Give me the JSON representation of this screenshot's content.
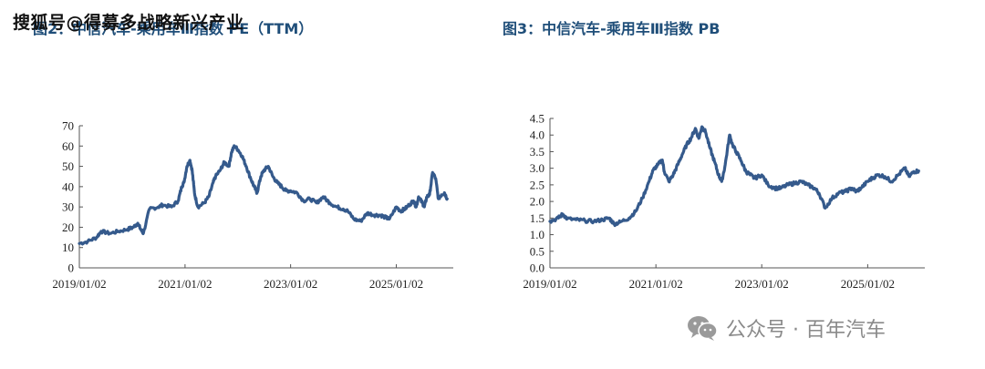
{
  "header": {
    "left_title": "图2：中信汽车-乘用车Ⅲ指数 PE（TTM）",
    "right_title": "图3：中信汽车-乘用车Ⅲ指数 PB",
    "overlay_watermark": "搜狐号@得募多战略新兴产业"
  },
  "footer": {
    "watermark_icon": "wechat-icon",
    "watermark_text": "公众号 · 百年汽车"
  },
  "chart_data": [
    {
      "type": "line",
      "title": "图2：中信汽车-乘用车Ⅲ指数 PE（TTM）",
      "xlabel": "",
      "ylabel": "",
      "ylim": [
        0,
        70
      ],
      "yticks": [
        0,
        10,
        20,
        30,
        40,
        50,
        60,
        70
      ],
      "xlim": [
        "2019/01/02",
        "2026/01/31"
      ],
      "xticks": [
        "2019/01/02",
        "2021/01/02",
        "2023/01/02",
        "2025/01/02"
      ],
      "grid": false,
      "color": "#355a8c",
      "series": [
        {
          "x": [
            "2019/01/02",
            "2019/03/01",
            "2019/05/01",
            "2019/06/01",
            "2019/08/01",
            "2019/10/01",
            "2019/12/01",
            "2020/01/10",
            "2020/02/10",
            "2020/03/01",
            "2020/03/20",
            "2020/05/01",
            "2020/07/01",
            "2020/08/01",
            "2020/10/01",
            "2020/11/15",
            "2020/12/10",
            "2020/12/25",
            "2021/01/15",
            "2021/02/05",
            "2021/02/20",
            "2021/03/10",
            "2021/04/01",
            "2021/05/15",
            "2021/06/15",
            "2021/07/15",
            "2021/08/01",
            "2021/09/01",
            "2021/10/01",
            "2021/11/01",
            "2021/11/20",
            "2021/12/10",
            "2022/01/05",
            "2022/02/01",
            "2022/03/01",
            "2022/04/01",
            "2022/04/25",
            "2022/05/15",
            "2022/06/10",
            "2022/07/01",
            "2022/08/01",
            "2022/09/01",
            "2022/10/01",
            "2022/11/01",
            "2022/12/01",
            "2023/01/02",
            "2023/02/15",
            "2023/04/01",
            "2023/05/15",
            "2023/07/01",
            "2023/08/15",
            "2023/10/01",
            "2023/11/15",
            "2024/01/01",
            "2024/02/01",
            "2024/03/15",
            "2024/05/01",
            "2024/06/15",
            "2024/08/01",
            "2024/09/15",
            "2024/10/15",
            "2024/11/15",
            "2025/01/02",
            "2025/02/01",
            "2025/03/01",
            "2025/04/01",
            "2025/05/01",
            "2025/05/20",
            "2025/06/05",
            "2025/07/01",
            "2025/07/15",
            "2025/08/01",
            "2025/08/20",
            "2025/09/10",
            "2025/10/01",
            "2025/10/20",
            "2025/11/10",
            "2025/12/01",
            "2025/12/20"
          ],
          "y": [
            12,
            13,
            15,
            18,
            17,
            18,
            19,
            20,
            22,
            19,
            17,
            29,
            30,
            31,
            30,
            33,
            40,
            42,
            50,
            53,
            48,
            36,
            30,
            32,
            35,
            42,
            45,
            48,
            52,
            50,
            57,
            60,
            58,
            55,
            50,
            44,
            40,
            37,
            45,
            48,
            50,
            45,
            42,
            40,
            38,
            38,
            37,
            33,
            34,
            32,
            35,
            32,
            30,
            29,
            28,
            24,
            23,
            27,
            26,
            26,
            25,
            24,
            30,
            28,
            29,
            31,
            33,
            30,
            35,
            32,
            30,
            35,
            36,
            47,
            44,
            34,
            36,
            37,
            34
          ]
        }
      ]
    },
    {
      "type": "line",
      "title": "图3：中信汽车-乘用车Ⅲ指数 PB",
      "xlabel": "",
      "ylabel": "",
      "ylim": [
        0,
        4.5
      ],
      "yticks": [
        0.0,
        0.5,
        1.0,
        1.5,
        2.0,
        2.5,
        3.0,
        3.5,
        4.0,
        4.5
      ],
      "xlim": [
        "2019/01/02",
        "2026/01/31"
      ],
      "xticks": [
        "2019/01/02",
        "2021/01/02",
        "2023/01/02",
        "2025/01/02"
      ],
      "grid": false,
      "color": "#355a8c",
      "series": [
        {
          "x": [
            "2019/01/02",
            "2019/03/01",
            "2019/04/01",
            "2019/05/01",
            "2019/07/01",
            "2019/09/01",
            "2019/11/01",
            "2020/01/01",
            "2020/02/15",
            "2020/03/20",
            "2020/05/01",
            "2020/07/01",
            "2020/08/15",
            "2020/10/01",
            "2020/11/15",
            "2020/12/15",
            "2021/01/15",
            "2021/02/15",
            "2021/03/01",
            "2021/04/01",
            "2021/05/01",
            "2021/06/01",
            "2021/07/01",
            "2021/08/01",
            "2021/09/01",
            "2021/10/01",
            "2021/10/25",
            "2021/11/15",
            "2021/12/10",
            "2022/01/10",
            "2022/02/10",
            "2022/03/10",
            "2022/04/01",
            "2022/04/25",
            "2022/05/25",
            "2022/06/15",
            "2022/07/10",
            "2022/08/15",
            "2022/09/15",
            "2022/10/15",
            "2022/11/15",
            "2023/01/02",
            "2023/02/15",
            "2023/04/01",
            "2023/05/15",
            "2023/07/01",
            "2023/08/15",
            "2023/10/01",
            "2023/11/15",
            "2024/01/01",
            "2024/02/01",
            "2024/03/15",
            "2024/05/01",
            "2024/06/15",
            "2024/08/01",
            "2024/09/15",
            "2024/10/15",
            "2024/11/15",
            "2025/01/02",
            "2025/02/01",
            "2025/03/15",
            "2025/05/01",
            "2025/06/15",
            "2025/08/01",
            "2025/09/15",
            "2025/10/15",
            "2025/11/15",
            "2025/12/20"
          ],
          "y": [
            1.4,
            1.5,
            1.62,
            1.48,
            1.45,
            1.42,
            1.4,
            1.45,
            1.5,
            1.32,
            1.38,
            1.5,
            1.7,
            2.1,
            2.6,
            2.95,
            3.1,
            3.25,
            2.9,
            2.6,
            2.8,
            3.1,
            3.4,
            3.7,
            3.9,
            4.2,
            3.9,
            4.25,
            4.1,
            3.6,
            3.2,
            2.8,
            2.6,
            3.1,
            4.0,
            3.7,
            3.5,
            3.2,
            2.9,
            2.8,
            2.7,
            2.8,
            2.5,
            2.4,
            2.4,
            2.5,
            2.55,
            2.6,
            2.5,
            2.4,
            2.25,
            1.8,
            2.1,
            2.25,
            2.3,
            2.4,
            2.3,
            2.4,
            2.6,
            2.7,
            2.8,
            2.75,
            2.6,
            2.8,
            3.0,
            2.75,
            2.9,
            2.92
          ]
        }
      ]
    }
  ]
}
